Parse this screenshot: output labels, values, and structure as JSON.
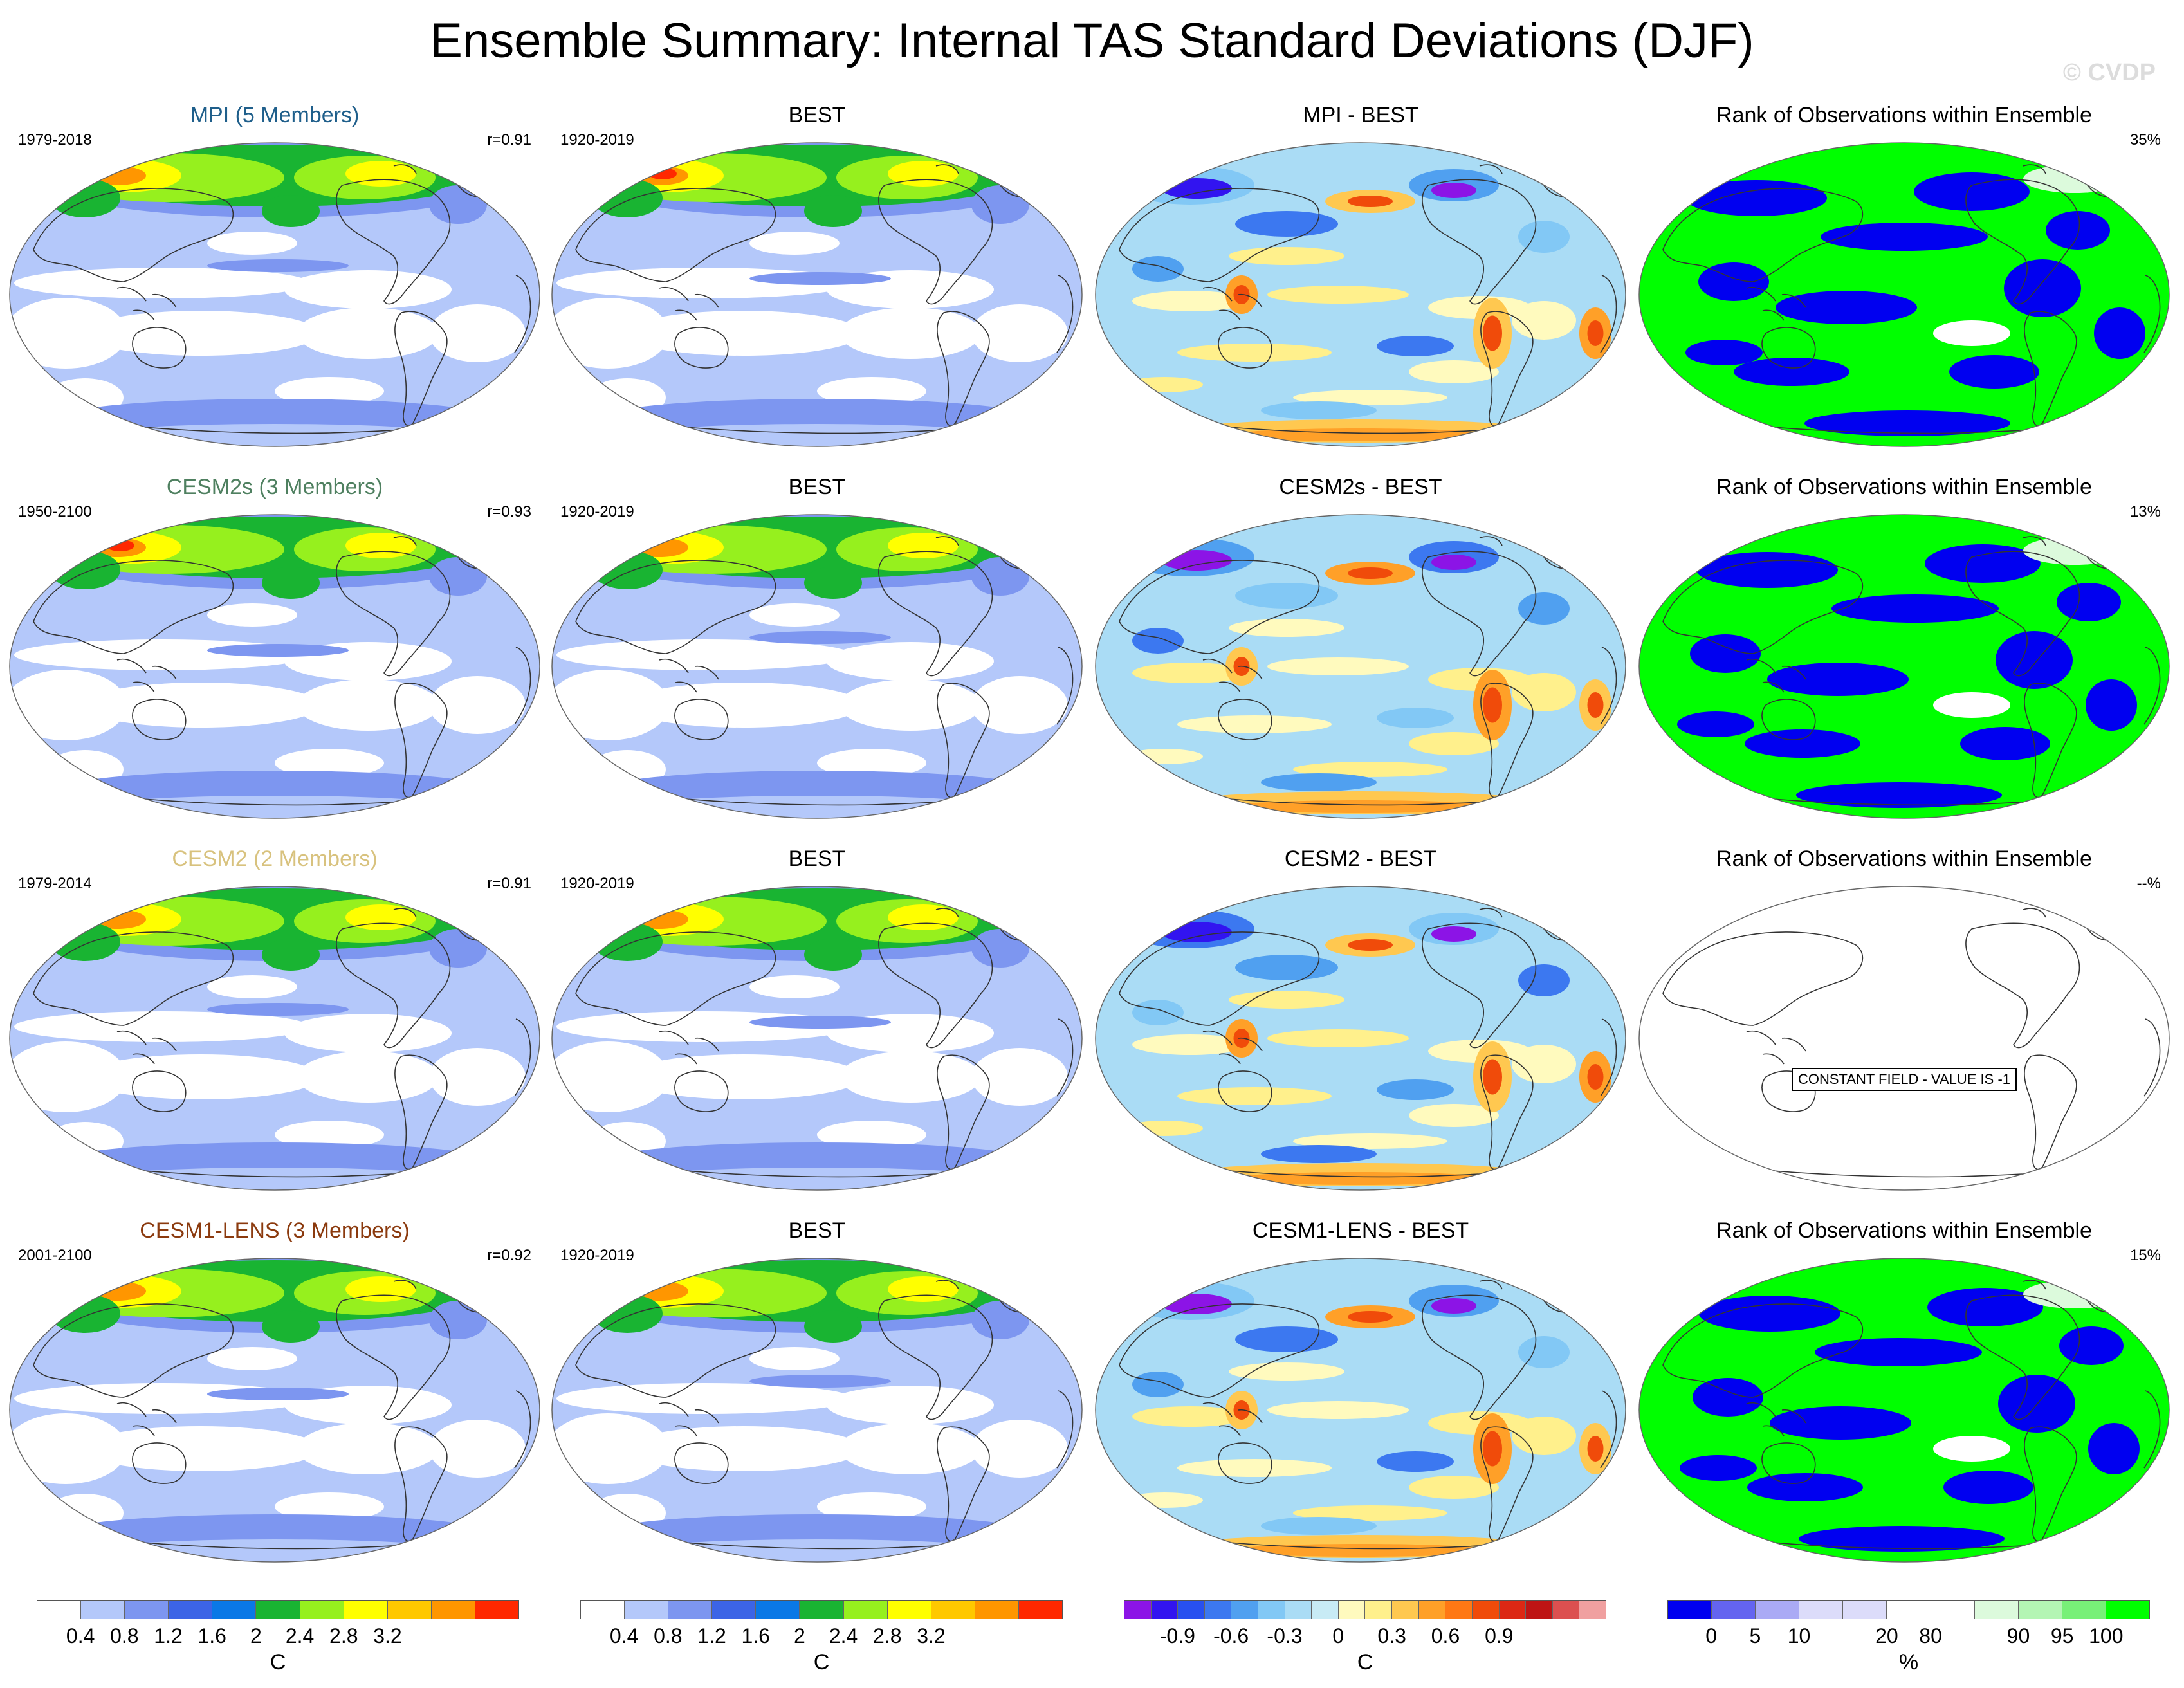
{
  "page": {
    "title": "Ensemble Summary: Internal TAS Standard Deviations (DJF)",
    "logo": "© CVDP"
  },
  "rows": [
    {
      "model": {
        "title": "MPI (5 Members)",
        "color": "#1f5f8b",
        "years": "1979-2018",
        "r": "r=0.91"
      },
      "obs": {
        "title": "BEST",
        "years": "1920-2019"
      },
      "diff": {
        "title": "MPI - BEST"
      },
      "rank": {
        "title": "Rank of Observations within Ensemble",
        "pct": "35%"
      }
    },
    {
      "model": {
        "title": "CESM2s (3 Members)",
        "color": "#4f8060",
        "years": "1950-2100",
        "r": "r=0.93"
      },
      "obs": {
        "title": "BEST",
        "years": "1920-2019"
      },
      "diff": {
        "title": "CESM2s - BEST"
      },
      "rank": {
        "title": "Rank of Observations within Ensemble",
        "pct": "13%"
      }
    },
    {
      "model": {
        "title": "CESM2 (2 Members)",
        "color": "#d8c27e",
        "years": "1979-2014",
        "r": "r=0.91"
      },
      "obs": {
        "title": "BEST",
        "years": "1920-2019"
      },
      "diff": {
        "title": "CESM2 - BEST"
      },
      "rank": {
        "title": "Rank of Observations within Ensemble",
        "pct": "--%",
        "constant_field": "CONSTANT FIELD - VALUE IS -1"
      }
    },
    {
      "model": {
        "title": "CESM1-LENS (3 Members)",
        "color": "#8b3a0e",
        "years": "2001-2100",
        "r": "r=0.92"
      },
      "obs": {
        "title": "BEST",
        "years": "1920-2019"
      },
      "diff": {
        "title": "CESM1-LENS - BEST"
      },
      "rank": {
        "title": "Rank of Observations within Ensemble",
        "pct": "15%"
      }
    }
  ],
  "colorbars": [
    {
      "colors": [
        "#ffffff",
        "#b4c8fa",
        "#7d96f0",
        "#3c64e6",
        "#0a78e6",
        "#19b432",
        "#96f01e",
        "#ffff00",
        "#ffc800",
        "#ff9600",
        "#ff2800"
      ],
      "labels": [
        "0.4",
        "0.8",
        "1.2",
        "1.6",
        "2",
        "2.4",
        "2.8",
        "3.2"
      ],
      "unit": "C"
    },
    {
      "colors": [
        "#ffffff",
        "#b4c8fa",
        "#7d96f0",
        "#3c64e6",
        "#0a78e6",
        "#19b432",
        "#96f01e",
        "#ffff00",
        "#ffc800",
        "#ff9600",
        "#ff2800"
      ],
      "labels": [
        "0.4",
        "0.8",
        "1.2",
        "1.6",
        "2",
        "2.4",
        "2.8",
        "3.2"
      ],
      "unit": "C"
    },
    {
      "colors": [
        "#8c14e6",
        "#3214f0",
        "#2850f0",
        "#3c78f0",
        "#50a0f0",
        "#82c8f5",
        "#aadcf5",
        "#c8ebf5",
        "#fffabe",
        "#fff08c",
        "#ffc850",
        "#ffa028",
        "#ff7814",
        "#f04b0a",
        "#dc2814",
        "#be1414",
        "#dc5050",
        "#f0a0a0"
      ],
      "labels": [
        "-0.9",
        "-0.6",
        "-0.3",
        "0",
        "0.3",
        "0.6",
        "0.9"
      ],
      "unit": "C"
    },
    {
      "colors": [
        "#0000f0",
        "#6464f0",
        "#aaaaf5",
        "#dcdcfa",
        "#dcdcfa",
        "#ffffff",
        "#ffffff",
        "#dcfadc",
        "#b4f5b4",
        "#78f078",
        "#00ff00"
      ],
      "labels": [
        "0",
        "5",
        "10",
        "20",
        "80",
        "90",
        "95",
        "100"
      ],
      "unit": "%"
    }
  ]
}
